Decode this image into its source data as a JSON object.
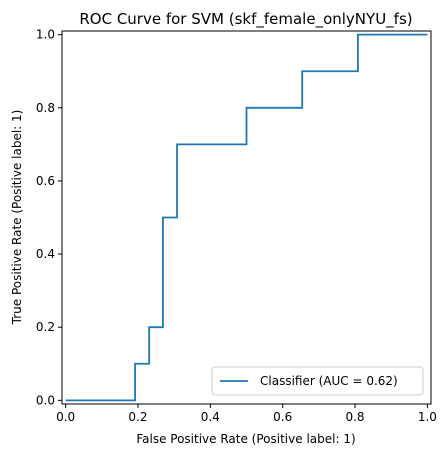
{
  "chart_data": {
    "type": "line",
    "title": "ROC Curve for SVM (skf_female_onlyNYU_fs)",
    "xlabel": "False Positive Rate (Positive label: 1)",
    "ylabel": "True Positive Rate (Positive label: 1)",
    "xlim": [
      -0.01,
      1.01
    ],
    "ylim": [
      -0.01,
      1.01
    ],
    "x_ticks": [
      "0.0",
      "0.2",
      "0.4",
      "0.6",
      "0.8",
      "1.0"
    ],
    "y_ticks": [
      "0.0",
      "0.2",
      "0.4",
      "0.6",
      "0.8",
      "1.0"
    ],
    "grid": false,
    "legend_position": "bottom-right",
    "series": [
      {
        "name": "Classifier (AUC = 0.62)",
        "color": "#1f77b4",
        "step": true,
        "x": [
          0.0,
          0.192,
          0.192,
          0.231,
          0.231,
          0.269,
          0.269,
          0.308,
          0.308,
          0.5,
          0.5,
          0.654,
          0.654,
          0.808,
          0.808,
          1.0
        ],
        "y": [
          0.0,
          0.0,
          0.1,
          0.1,
          0.2,
          0.2,
          0.5,
          0.5,
          0.7,
          0.7,
          0.8,
          0.8,
          0.9,
          0.9,
          1.0,
          1.0
        ]
      }
    ]
  }
}
